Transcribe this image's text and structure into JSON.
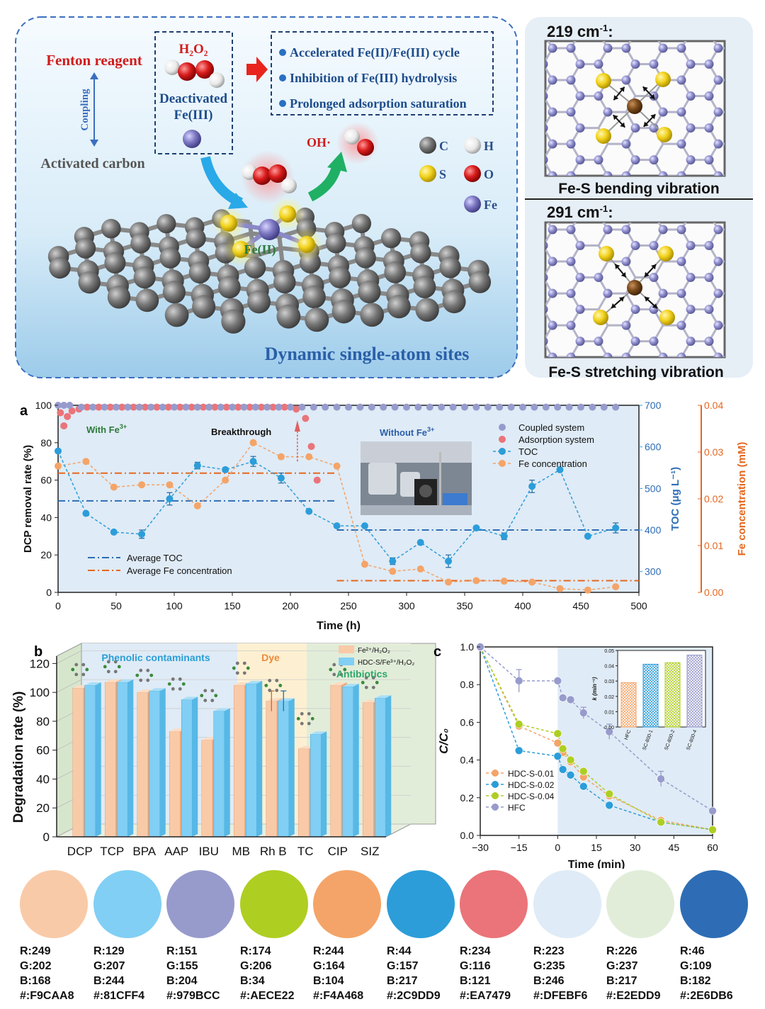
{
  "top_panel": {
    "fenton_label": "Fenton reagent",
    "coupling_label": "Coupling",
    "activated_carbon_label": "Activated carbon",
    "h2o2_label": "H₂O₂",
    "deactivated_line1": "Deactivated",
    "deactivated_line2": "Fe(III)",
    "benefits": [
      "Accelerated Fe(II)/Fe(III) cycle",
      "Inhibition of Fe(III) hydrolysis",
      "Prolonged adsorption saturation"
    ],
    "oh_label": "OH·",
    "fe2_label": "Fe(II)",
    "legend_atoms": [
      {
        "symbol": "C",
        "color": "#6b6b6b"
      },
      {
        "symbol": "H",
        "color": "#f2f2f2"
      },
      {
        "symbol": "S",
        "color": "#f2d21c"
      },
      {
        "symbol": "O",
        "color": "#d91c1c"
      },
      {
        "symbol": "Fe",
        "color": "#7d78c2"
      }
    ],
    "title": "Dynamic single-atom sites"
  },
  "right_panel": {
    "top_freq": "219 cm",
    "top_freq_sup": "-1",
    "top_caption": "Fe-S bending vibration",
    "bottom_freq": "291 cm",
    "bottom_freq_sup": "-1",
    "bottom_caption": "Fe-S stretching vibration"
  },
  "panel_a_text": {
    "label": "a",
    "with_fe": "With Fe",
    "with_fe_sup": "3+",
    "breakthrough": "Breakthrough",
    "without_fe": "Without Fe",
    "without_fe_sup": "3+",
    "legend": [
      "Coupled system",
      "Adsorption system",
      "TOC",
      "Fe concentration"
    ],
    "legend2": [
      "Average TOC",
      "Average Fe concentration"
    ]
  },
  "panel_b_text": {
    "label": "b",
    "group_phenolic": "Phenolic contaminants",
    "group_dye": "Dye",
    "group_antibiotics": "Antibiotics",
    "legend": [
      "Fe²⁺/H₂O₂",
      "HDC-S/Fe³⁺/H₂O₂"
    ]
  },
  "panel_c_text": {
    "label": "c",
    "inset_ylabel": "k (min⁻¹)"
  },
  "chart_data": [
    {
      "type": "scatter",
      "title": "",
      "xlabel": "Time (h)",
      "ylabel": "DCP removal rate (%)",
      "y2label": "TOC (μg L⁻¹)",
      "y3label": "Fe concentration (mM)",
      "xlim": [
        0,
        500
      ],
      "xticks": [
        0,
        50,
        100,
        150,
        200,
        250,
        300,
        350,
        400,
        450,
        500
      ],
      "ylim": [
        0,
        100
      ],
      "yticks": [
        0,
        20,
        40,
        60,
        80,
        100
      ],
      "y2lim": [
        250,
        700
      ],
      "y2ticks": [
        300,
        400,
        500,
        600,
        700
      ],
      "y3lim": [
        0,
        0.04
      ],
      "y3ticks": [
        "0.00",
        "0.01",
        "0.02",
        "0.03",
        "0.04"
      ],
      "series": [
        {
          "name": "Coupled system",
          "color": "#979BCC",
          "x": [
            0,
            5,
            10,
            20,
            30,
            40,
            50,
            60,
            70,
            80,
            90,
            100,
            110,
            120,
            130,
            140,
            150,
            160,
            170,
            180,
            190,
            200,
            210,
            220,
            230,
            240,
            250,
            260,
            270,
            280,
            290,
            300,
            310,
            320,
            330,
            340,
            350,
            360,
            370,
            380,
            390,
            400,
            410,
            420,
            430,
            440,
            450,
            460,
            470,
            480
          ],
          "y": [
            100,
            100,
            100,
            99,
            99,
            99,
            99,
            99,
            99,
            99,
            99,
            99,
            99,
            99,
            99,
            99,
            99,
            99,
            99,
            99,
            99,
            99,
            99,
            99,
            99,
            99,
            99,
            99,
            99,
            99,
            99,
            99,
            99,
            99,
            99,
            99,
            99,
            99,
            99,
            99,
            99,
            99,
            99,
            99,
            99,
            99,
            99,
            99,
            99,
            99
          ]
        },
        {
          "name": "Adsorption system",
          "color": "#EA7479",
          "x": [
            2,
            5,
            8,
            12,
            18,
            25,
            35,
            45,
            55,
            65,
            75,
            85,
            95,
            105,
            115,
            125,
            135,
            145,
            155,
            165,
            175,
            185,
            195,
            205,
            213,
            218,
            223
          ],
          "y": [
            96,
            89,
            94,
            97,
            98,
            99,
            99,
            99,
            99,
            99,
            99,
            99,
            99,
            99,
            99,
            99,
            99,
            99,
            99,
            99,
            99,
            99,
            99,
            98,
            93,
            78,
            60
          ]
        },
        {
          "name": "TOC",
          "color": "#2C9DD9",
          "x": [
            0,
            24,
            48,
            72,
            96,
            120,
            144,
            168,
            192,
            216,
            240,
            264,
            288,
            312,
            336,
            360,
            384,
            408,
            432,
            456,
            480
          ],
          "y2": [
            590,
            440,
            395,
            390,
            475,
            555,
            545,
            565,
            525,
            445,
            410,
            410,
            325,
            370,
            325,
            405,
            385,
            505,
            545,
            385,
            405
          ],
          "err": [
            0,
            0,
            0,
            10,
            15,
            8,
            5,
            12,
            12,
            0,
            0,
            0,
            8,
            0,
            15,
            0,
            8,
            15,
            0,
            0,
            12
          ]
        },
        {
          "name": "Fe concentration",
          "color": "#F4A468",
          "x": [
            0,
            24,
            48,
            72,
            96,
            120,
            144,
            168,
            192,
            216,
            240,
            264,
            288,
            312,
            336,
            360,
            384,
            408,
            432,
            456,
            480
          ],
          "y3": [
            0.027,
            0.028,
            0.0225,
            0.023,
            0.023,
            0.0185,
            0.024,
            0.032,
            0.029,
            0.029,
            0.027,
            0.006,
            0.0045,
            0.005,
            0.0022,
            0.0025,
            0.0024,
            0.0022,
            0.0008,
            0.0005,
            0.0012
          ]
        },
        {
          "name": "Average TOC",
          "color": "#2E6DB6",
          "segments": [
            {
              "x": [
                0,
                240
              ],
              "y2": 470
            },
            {
              "x": [
                240,
                500
              ],
              "y2": 400
            }
          ]
        },
        {
          "name": "Average Fe concentration",
          "color": "#e5671f",
          "segments": [
            {
              "x": [
                0,
                240
              ],
              "y3": 0.0255
            },
            {
              "x": [
                240,
                500
              ],
              "y3": 0.0025
            }
          ]
        }
      ]
    },
    {
      "type": "bar",
      "title": "",
      "xlabel": "",
      "ylabel": "Degradation rate (%)",
      "ylim": [
        0,
        130
      ],
      "yticks": [
        0,
        20,
        40,
        60,
        80,
        100,
        120
      ],
      "categories": [
        "DCP",
        "TCP",
        "BPA",
        "AAP",
        "IBU",
        "MB",
        "Rh B",
        "TC",
        "CIP",
        "SIZ"
      ],
      "series": [
        {
          "name": "Fe²⁺/H₂O₂",
          "color": "#F9CAA8",
          "values": [
            103,
            107,
            100,
            73,
            67,
            105,
            94,
            61,
            105,
            93
          ],
          "err": [
            0,
            0,
            0,
            0,
            0,
            0,
            7,
            0,
            0,
            0
          ]
        },
        {
          "name": "HDC-S/Fe³⁺/H₂O₂",
          "color": "#81CFF4",
          "values": [
            105,
            107,
            101,
            95,
            87,
            106,
            94,
            71,
            104,
            96
          ],
          "err": [
            0,
            0,
            0,
            0,
            0,
            0,
            7,
            0,
            0,
            0
          ]
        }
      ]
    },
    {
      "type": "line",
      "title": "",
      "xlabel": "Time (min)",
      "ylabel": "C/C₀",
      "xlim": [
        -30,
        60
      ],
      "xticks": [
        -30,
        -15,
        0,
        15,
        30,
        45,
        60
      ],
      "ylim": [
        0,
        1.0
      ],
      "yticks": [
        "0.0",
        "0.2",
        "0.4",
        "0.6",
        "0.8",
        "1.0"
      ],
      "x": [
        -30,
        -15,
        0,
        2,
        5,
        10,
        20,
        40,
        60
      ],
      "series": [
        {
          "name": "HDC-S-0.01",
          "color": "#F4A468",
          "values": [
            1.0,
            0.58,
            0.49,
            0.44,
            0.39,
            0.31,
            0.21,
            0.08,
            0.03
          ]
        },
        {
          "name": "HDC-S-0.02",
          "color": "#2C9DD9",
          "values": [
            1.0,
            0.45,
            0.42,
            0.35,
            0.32,
            0.26,
            0.16,
            0.07,
            0.03
          ]
        },
        {
          "name": "HDC-S-0.04",
          "color": "#AECE22",
          "values": [
            1.0,
            0.59,
            0.54,
            0.46,
            0.4,
            0.34,
            0.22,
            0.07,
            0.03
          ]
        },
        {
          "name": "HFC",
          "color": "#979BCC",
          "values": [
            1.0,
            0.82,
            0.82,
            0.73,
            0.72,
            0.65,
            0.55,
            0.3,
            0.13
          ]
        }
      ],
      "inset": {
        "type": "bar",
        "categories": [
          "HFC",
          "SC-800-1",
          "SC-800-2",
          "SC-800-4"
        ],
        "values": [
          0.029,
          0.041,
          0.042,
          0.047
        ],
        "colors": [
          "#F4A468",
          "#2C9DD9",
          "#AECE22",
          "#979BCC"
        ],
        "ylim": [
          0,
          0.05
        ],
        "yticks": [
          "0.00",
          "0.01",
          "0.02",
          "0.03",
          "0.04",
          "0.05"
        ]
      }
    }
  ],
  "palette": [
    {
      "r": "R:249",
      "g": "G:202",
      "b": "B:168",
      "hex": "#:F9CAA8",
      "color": "#F9CAA8"
    },
    {
      "r": "R:129",
      "g": "G:207",
      "b": "B:244",
      "hex": "#:81CFF4",
      "color": "#81CFF4"
    },
    {
      "r": "R:151",
      "g": "G:155",
      "b": "B:204",
      "hex": "#:979BCC",
      "color": "#979BCC"
    },
    {
      "r": "R:174",
      "g": "G:206",
      "b": "B:34",
      "hex": "#:AECE22",
      "color": "#AECE22"
    },
    {
      "r": "R:244",
      "g": "G:164",
      "b": "B:104",
      "hex": "#:F4A468",
      "color": "#F4A468"
    },
    {
      "r": "R:44",
      "g": "G:157",
      "b": "B:217",
      "hex": "#:2C9DD9",
      "color": "#2C9DD9"
    },
    {
      "r": "R:234",
      "g": "G:116",
      "b": "B:121",
      "hex": "#:EA7479",
      "color": "#EA7479"
    },
    {
      "r": "R:223",
      "g": "G:235",
      "b": "B:246",
      "hex": "#:DFEBF6",
      "color": "#DFEBF6"
    },
    {
      "r": "R:226",
      "g": "G:237",
      "b": "B:217",
      "hex": "#:E2EDD9",
      "color": "#E2EDD9"
    },
    {
      "r": "R:46",
      "g": "G:109",
      "b": "B:182",
      "hex": "#:2E6DB6",
      "color": "#2E6DB6"
    }
  ]
}
